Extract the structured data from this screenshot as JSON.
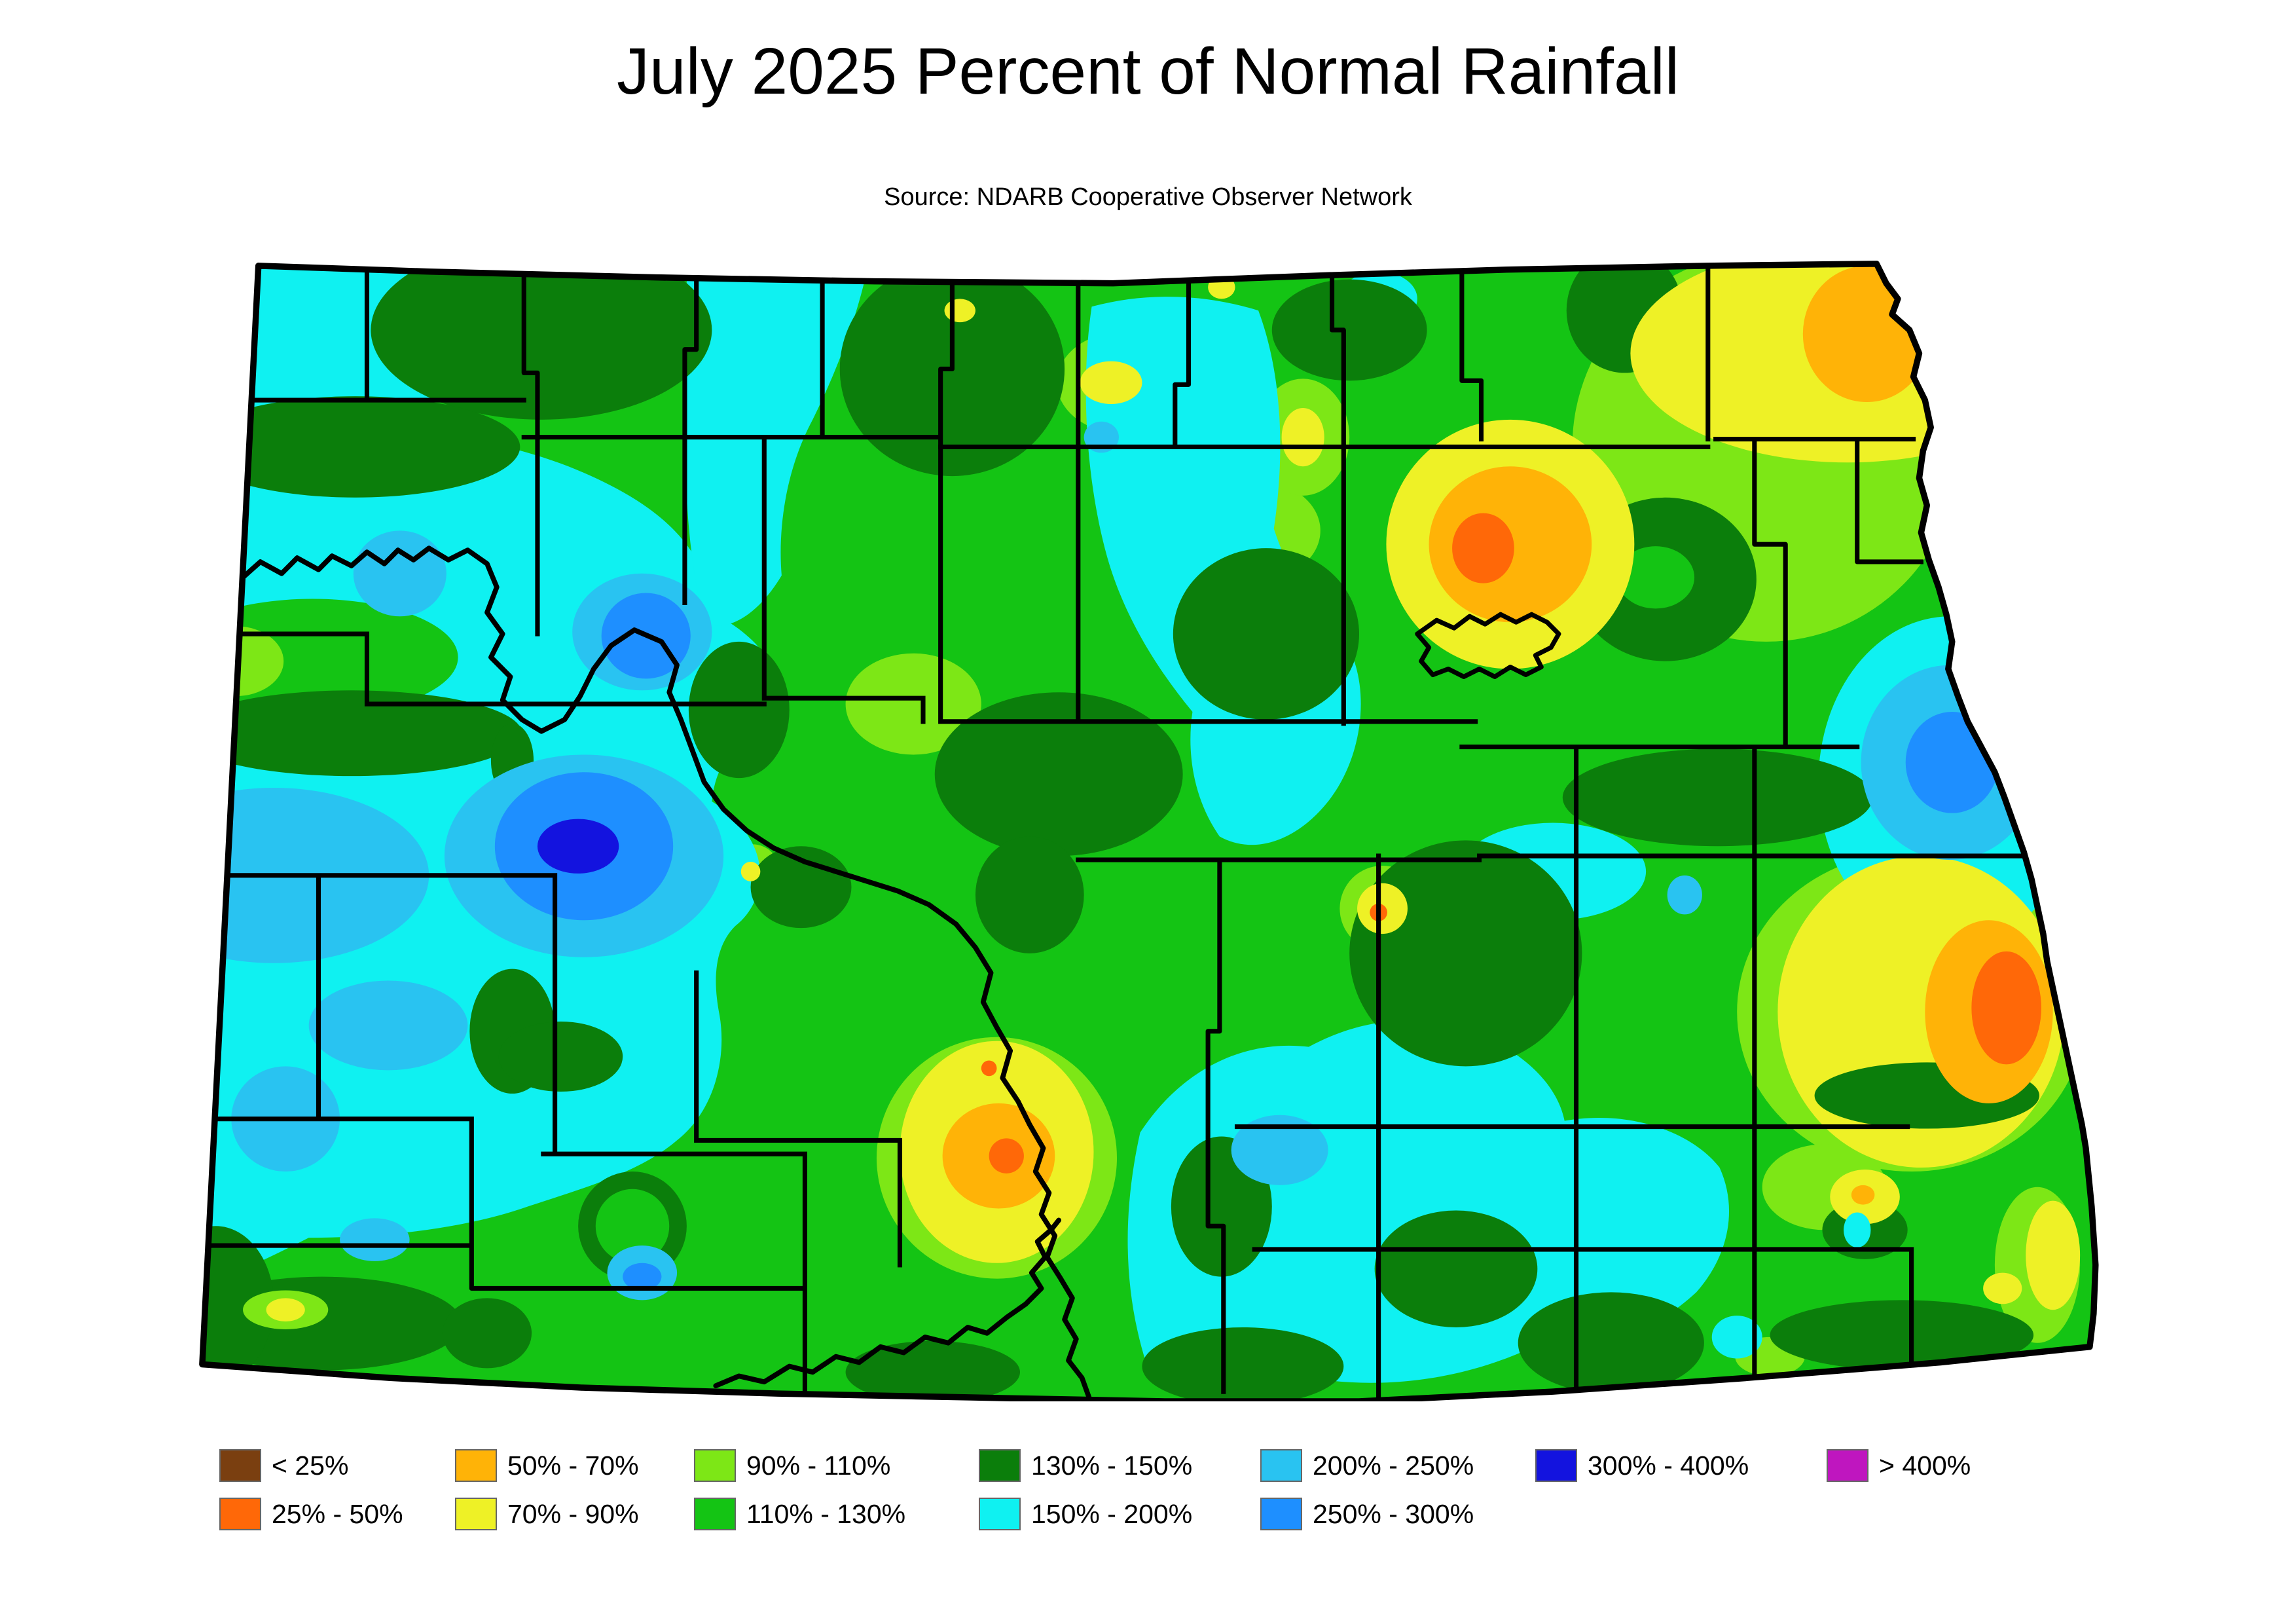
{
  "title": "July 2025 Percent of Normal Rainfall",
  "subtitle": "Source: NDARB Cooperative Observer Network",
  "map": {
    "name": "north-dakota-county-rainfall-map",
    "unit": "percent of normal rainfall"
  },
  "colors": {
    "lt25": "#7A3F10",
    "r25_50": "#FF6808",
    "r50_70": "#FFB307",
    "r70_90": "#EEF126",
    "r90_110": "#7DE716",
    "r110_130": "#14C414",
    "r130_150": "#0B7E0B",
    "r150_200": "#0FF1F1",
    "r200_250": "#29C3F1",
    "r250_300": "#1E8FFF",
    "r300_400": "#1313DF",
    "gt400": "#BF16BF"
  },
  "legend": {
    "columns": [
      [
        {
          "label": "< 25%",
          "key": "lt25"
        },
        {
          "label": "25% - 50%",
          "key": "r25_50"
        }
      ],
      [
        {
          "label": "50% - 70%",
          "key": "r50_70"
        },
        {
          "label": "70% - 90%",
          "key": "r70_90"
        }
      ],
      [
        {
          "label": "90% - 110%",
          "key": "r90_110"
        },
        {
          "label": "110% - 130%",
          "key": "r110_130"
        }
      ],
      [
        {
          "label": "130% - 150%",
          "key": "r130_150"
        },
        {
          "label": "150% - 200%",
          "key": "r150_200"
        }
      ],
      [
        {
          "label": "200% - 250%",
          "key": "r200_250"
        },
        {
          "label": "250% - 300%",
          "key": "r250_300"
        }
      ],
      [
        {
          "label": "300% - 400%",
          "key": "r300_400"
        }
      ],
      [
        {
          "label": "> 400%",
          "key": "gt400"
        }
      ]
    ]
  }
}
